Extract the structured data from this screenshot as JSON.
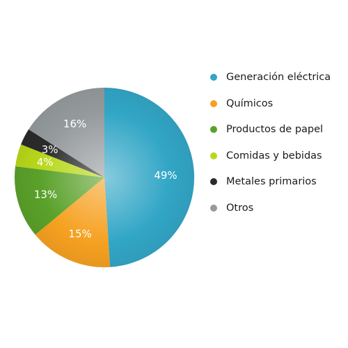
{
  "chart_data": {
    "type": "pie",
    "title": "",
    "legend_position": "right",
    "series": [
      {
        "label": "Generación eléctrica",
        "value": 49,
        "value_label": "49%",
        "color": "#32a6c6"
      },
      {
        "label": "Químicos",
        "value": 15,
        "value_label": "15%",
        "color": "#f6a121"
      },
      {
        "label": "Productos de papel",
        "value": 13,
        "value_label": "13%",
        "color": "#5aa12a"
      },
      {
        "label": "Comidas y bebidas",
        "value": 4,
        "value_label": "4%",
        "color": "#b8d81a"
      },
      {
        "label": "Metales primarios",
        "value": 3,
        "value_label": "3%",
        "color": "#2b2b2b"
      },
      {
        "label": "Otros",
        "value": 16,
        "value_label": "16%",
        "color": "#959a9c"
      }
    ]
  }
}
